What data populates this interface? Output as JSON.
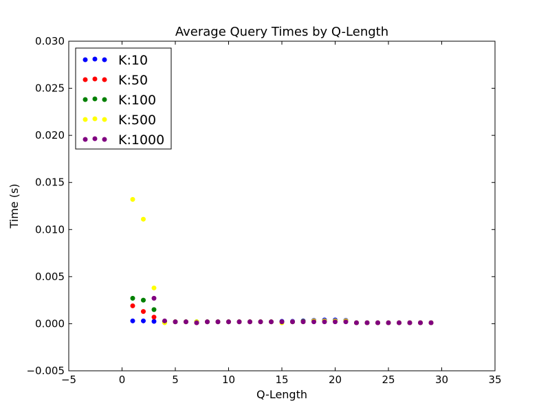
{
  "chart_data": {
    "type": "scatter",
    "title": "Average Query Times by Q-Length",
    "xlabel": "Q-Length",
    "ylabel": "Time (s)",
    "xlim": [
      -5,
      35
    ],
    "ylim": [
      -0.005,
      0.03
    ],
    "xticks": [
      -5,
      0,
      5,
      10,
      15,
      20,
      25,
      30,
      35
    ],
    "yticks": [
      -0.005,
      0.0,
      0.005,
      0.01,
      0.015,
      0.02,
      0.025,
      0.03
    ],
    "xtick_labels": [
      "−5",
      "0",
      "5",
      "10",
      "15",
      "20",
      "25",
      "30",
      "35"
    ],
    "ytick_labels": [
      "−0.005",
      "0.000",
      "0.005",
      "0.010",
      "0.015",
      "0.020",
      "0.025",
      "0.030"
    ],
    "grid": false,
    "legend_position": "top-left",
    "series": [
      {
        "name": "K:10",
        "color": "#0000ff",
        "x": [
          1,
          2,
          3,
          4,
          5,
          6,
          7,
          8,
          9,
          10,
          11,
          12,
          13,
          14,
          15,
          16,
          17,
          18,
          19,
          20,
          21,
          22,
          23,
          24,
          25,
          26,
          27,
          28,
          29
        ],
        "y": [
          0.0003,
          0.0003,
          0.00025,
          0.0002,
          0.0002,
          0.0002,
          0.0002,
          0.0002,
          0.0002,
          0.0002,
          0.0002,
          0.0002,
          0.0002,
          0.0002,
          0.00025,
          0.00025,
          0.0003,
          0.00035,
          0.0004,
          0.0004,
          0.00035,
          0.0001,
          0.0001,
          0.0001,
          0.0001,
          0.0001,
          0.0001,
          0.0001,
          0.0001
        ]
      },
      {
        "name": "K:50",
        "color": "#ff0000",
        "x": [
          1,
          2,
          3,
          4,
          5,
          6,
          7,
          8,
          9,
          10,
          11,
          12,
          13,
          14,
          15,
          16,
          17,
          18,
          19,
          20,
          21,
          22,
          23,
          24,
          25,
          26,
          27,
          28,
          29
        ],
        "y": [
          0.0019,
          0.0013,
          0.0007,
          0.0002,
          0.0002,
          0.0002,
          0.0001,
          0.0002,
          0.0002,
          0.0002,
          0.0002,
          0.0002,
          0.0002,
          0.0002,
          0.0002,
          0.0002,
          0.00025,
          0.0003,
          0.0003,
          0.0003,
          0.0003,
          0.0001,
          0.0001,
          0.0001,
          0.0001,
          0.0001,
          0.0001,
          0.0001,
          0.0001
        ]
      },
      {
        "name": "K:100",
        "color": "#008000",
        "x": [
          1,
          2,
          3,
          4,
          5,
          6,
          7,
          8,
          9,
          10,
          11,
          12,
          13,
          14,
          15,
          16,
          17,
          18,
          19,
          20,
          21,
          22,
          23,
          24,
          25,
          26,
          27,
          28,
          29
        ],
        "y": [
          0.0027,
          0.0025,
          0.0015,
          0.0002,
          0.0002,
          0.0002,
          0.0002,
          0.0002,
          0.0002,
          0.0002,
          0.0002,
          0.0002,
          0.0002,
          0.0002,
          0.0002,
          0.0002,
          0.00025,
          0.0003,
          0.0003,
          0.0003,
          0.0003,
          0.0001,
          0.0001,
          0.0001,
          0.0001,
          0.0001,
          0.0001,
          0.0001,
          0.0001
        ]
      },
      {
        "name": "K:500",
        "color": "#ffff00",
        "x": [
          1,
          2,
          3,
          4,
          5,
          6,
          7,
          8,
          9,
          10,
          11,
          12,
          13,
          14,
          15,
          16,
          17,
          18,
          19,
          20,
          21,
          22,
          23,
          24,
          25,
          26,
          27,
          28,
          29
        ],
        "y": [
          0.0132,
          0.0111,
          0.0038,
          0.0001,
          0.0002,
          0.0002,
          0.0002,
          0.0002,
          0.0002,
          0.0002,
          0.0002,
          0.0002,
          0.0002,
          0.0002,
          0.0001,
          0.0002,
          0.0002,
          0.0003,
          0.0003,
          0.0003,
          0.0003,
          0.0001,
          0.0001,
          0.0001,
          0.0001,
          0.0001,
          0.0001,
          0.0001,
          0.0001
        ]
      },
      {
        "name": "K:1000",
        "color": "#800080",
        "x": [
          3,
          4,
          5,
          6,
          7,
          8,
          9,
          10,
          11,
          12,
          13,
          14,
          15,
          16,
          17,
          18,
          19,
          20,
          21,
          22,
          23,
          24,
          25,
          26,
          27,
          28,
          29
        ],
        "y": [
          0.0027,
          0.0003,
          0.0002,
          0.0002,
          0.0001,
          0.0002,
          0.0002,
          0.0002,
          0.0002,
          0.0002,
          0.0002,
          0.0002,
          0.0002,
          0.0002,
          0.0002,
          0.0002,
          0.0002,
          0.0002,
          0.0002,
          0.0001,
          0.0001,
          0.0001,
          0.0001,
          0.0001,
          0.0001,
          0.0001,
          0.0001
        ]
      }
    ]
  }
}
